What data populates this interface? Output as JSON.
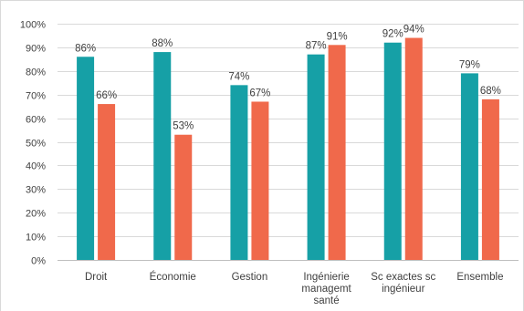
{
  "chart_data": {
    "type": "bar",
    "categories": [
      [
        "Droit"
      ],
      [
        "Économie"
      ],
      [
        "Gestion"
      ],
      [
        "Ingénierie",
        "managemt",
        "santé"
      ],
      [
        "Sc exactes sc",
        "ingénieur"
      ],
      [
        "Ensemble"
      ]
    ],
    "series": [
      {
        "values": [
          86,
          88,
          74,
          87,
          92,
          79
        ],
        "labels": [
          "86%",
          "88%",
          "74%",
          "87%",
          "92%",
          "79%"
        ],
        "color": "#16a0a6"
      },
      {
        "values": [
          66,
          53,
          67,
          91,
          94,
          68
        ],
        "labels": [
          "66%",
          "53%",
          "67%",
          "91%",
          "94%",
          "68%"
        ],
        "color": "#f0694b"
      }
    ],
    "ylim": [
      0,
      100
    ],
    "yticks": [
      "0%",
      "10%",
      "20%",
      "30%",
      "40%",
      "50%",
      "60%",
      "70%",
      "80%",
      "90%",
      "100%"
    ],
    "grid": true,
    "legend": false
  }
}
